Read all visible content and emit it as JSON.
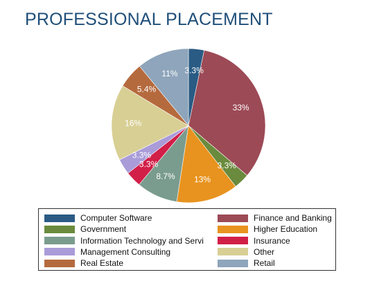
{
  "title": "PROFESSIONAL PLACEMENT",
  "chart_data": {
    "type": "pie",
    "start": "12 o'clock",
    "direction": "clockwise",
    "slices": [
      {
        "name": "Computer Software",
        "value": 3.3,
        "label": "3.3%",
        "color": "#2a5b84"
      },
      {
        "name": "Finance and Banking",
        "value": 33,
        "label": "33%",
        "color": "#9c4a56"
      },
      {
        "name": "Government",
        "value": 3.3,
        "label": "3.3%",
        "color": "#6a8b3d"
      },
      {
        "name": "Higher Education",
        "value": 13,
        "label": "13%",
        "color": "#e8931f"
      },
      {
        "name": "Information Technology and Servi",
        "value": 8.7,
        "label": "8.7%",
        "color": "#7a9c8e"
      },
      {
        "name": "Insurance",
        "value": 3.3,
        "label": "3.3%",
        "color": "#d11f48"
      },
      {
        "name": "Management Consulting",
        "value": 3.3,
        "label": "3.3%",
        "color": "#a99cd9"
      },
      {
        "name": "Other",
        "value": 16,
        "label": "16%",
        "color": "#d8cf94"
      },
      {
        "name": "Real Estate",
        "value": 5.4,
        "label": "5.4%",
        "color": "#b56a3e"
      },
      {
        "name": "Retail",
        "value": 11,
        "label": "11%",
        "color": "#8ea5bb"
      }
    ],
    "legend": {
      "placement": "bottom",
      "columns": 2,
      "order": [
        "Computer Software",
        "Finance and Banking",
        "Government",
        "Higher Education",
        "Information Technology and Servi",
        "Insurance",
        "Management Consulting",
        "Other",
        "Real Estate",
        "Retail"
      ]
    }
  }
}
